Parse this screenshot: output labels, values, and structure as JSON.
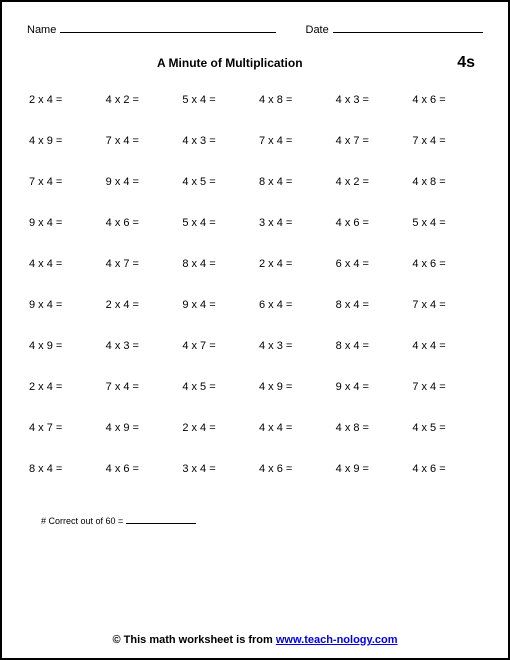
{
  "header": {
    "name_label": "Name",
    "date_label": "Date"
  },
  "title": "A Minute of Multiplication",
  "level": "4s",
  "problems": [
    [
      "2 x 4 =",
      "4 x 2 =",
      "5 x 4 =",
      "4 x 8 =",
      "4 x 3 =",
      "4 x 6 ="
    ],
    [
      "4 x 9 =",
      "7 x 4 =",
      "4 x 3 =",
      "7 x 4 =",
      "4 x 7 =",
      "7 x 4 ="
    ],
    [
      "7 x 4 =",
      "9 x 4 =",
      "4 x 5 =",
      "8 x 4 =",
      "4 x 2 =",
      "4 x 8 ="
    ],
    [
      "9 x 4 =",
      "4 x 6 =",
      "5 x 4 =",
      "3 x 4 =",
      "4 x 6 =",
      "5 x 4 ="
    ],
    [
      "4 x 4 =",
      "4 x 7 =",
      "8 x 4 =",
      "2 x 4 =",
      "6 x 4 =",
      "4 x 6 ="
    ],
    [
      "9 x 4 =",
      "2 x 4 =",
      "9 x 4 =",
      "6 x 4 =",
      "8 x 4 =",
      "7 x 4 ="
    ],
    [
      "4 x 9 =",
      "4 x 3 =",
      "4 x 7 =",
      "4 x 3 =",
      "8 x 4 =",
      "4 x 4 ="
    ],
    [
      "2 x 4 =",
      "7 x 4 =",
      "4 x 5 =",
      "4 x 9 =",
      "9 x 4 =",
      "7 x 4 ="
    ],
    [
      "4 x 7 =",
      "4 x 9 =",
      "2 x 4 =",
      "4 x 4 =",
      "4 x 8 =",
      "4 x 5 ="
    ],
    [
      "8 x 4 =",
      "4 x 6 =",
      "3 x 4 =",
      "4 x 6 =",
      "4 x 9 =",
      "4 x 6 ="
    ]
  ],
  "score_label": "# Correct out of 60 =",
  "footer": {
    "prefix": "© This math worksheet is from ",
    "link_text": "www.teach-nology.com"
  }
}
